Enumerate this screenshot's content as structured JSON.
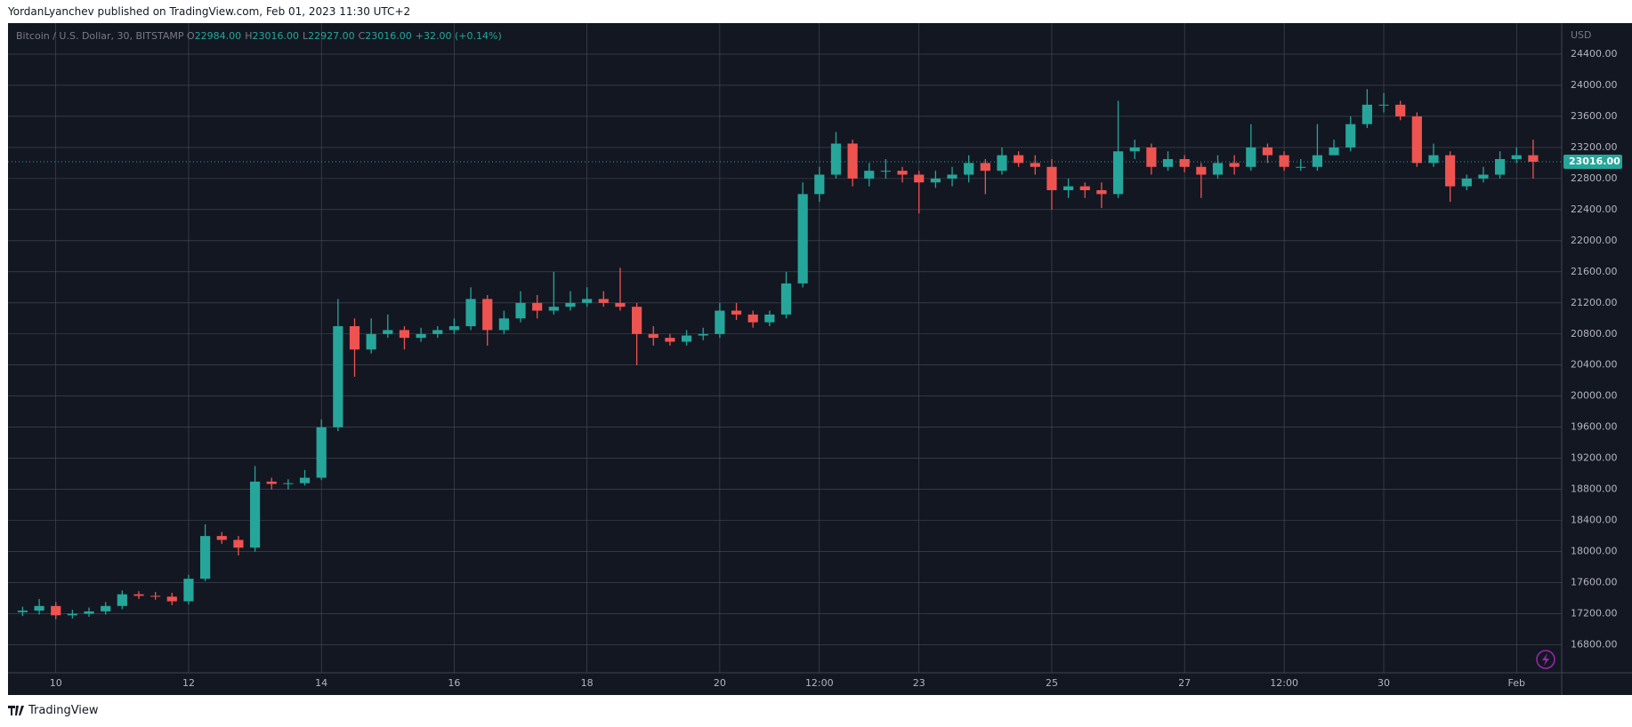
{
  "header": {
    "byline": "YordanLyanchev published on TradingView.com, Feb 01, 2023 11:30 UTC+2"
  },
  "footer": {
    "brand": "TradingView"
  },
  "chart_data": {
    "type": "candlestick",
    "symbol": "Bitcoin / U.S. Dollar, 30, BITSTAMP",
    "legend": [
      {
        "label": "O",
        "value": "22984.00"
      },
      {
        "label": "H",
        "value": "23016.00"
      },
      {
        "label": "L",
        "value": "22927.00"
      },
      {
        "label": "C",
        "value": "23016.00"
      }
    ],
    "change": "+32.00 (+0.14%)",
    "currency": "USD",
    "last_price_label": "23016.00",
    "up_color": "#26a69a",
    "down_color": "#ef5350",
    "grid": true,
    "x": [
      9.5,
      9.75,
      10,
      10.25,
      10.5,
      10.75,
      11,
      11.25,
      11.5,
      11.75,
      12,
      12.25,
      12.5,
      12.75,
      13,
      13.25,
      13.5,
      13.75,
      14,
      14.25,
      14.5,
      14.75,
      15,
      15.25,
      15.5,
      15.75,
      16,
      16.25,
      16.5,
      16.75,
      17,
      17.25,
      17.5,
      17.75,
      18,
      18.25,
      18.5,
      18.75,
      19,
      19.25,
      19.5,
      19.75,
      20,
      20.25,
      20.5,
      20.75,
      21,
      21.25,
      21.5,
      21.75,
      22,
      22.25,
      22.5,
      22.75,
      23,
      23.25,
      23.5,
      23.75,
      24,
      24.25,
      24.5,
      24.75,
      25,
      25.25,
      25.5,
      25.75,
      26,
      26.25,
      26.5,
      26.75,
      27,
      27.25,
      27.5,
      27.75,
      28,
      28.25,
      28.5,
      28.75,
      29,
      29.25,
      29.5,
      29.75,
      30,
      30.25,
      30.5,
      30.75,
      31,
      31.25,
      31.5,
      31.75,
      32,
      32.25
    ],
    "open": [
      17220,
      17240,
      17300,
      17180,
      17200,
      17230,
      17300,
      17450,
      17430,
      17420,
      17360,
      17650,
      18200,
      18150,
      18050,
      18900,
      18870,
      18880,
      18950,
      19600,
      20900,
      20600,
      20800,
      20850,
      20750,
      20800,
      20850,
      20900,
      21250,
      20850,
      21000,
      21200,
      21100,
      21150,
      21200,
      21250,
      21200,
      21150,
      20800,
      20750,
      20700,
      20780,
      20800,
      21100,
      21050,
      20950,
      21050,
      21450,
      22600,
      22850,
      23250,
      22800,
      22900,
      22900,
      22850,
      22750,
      22800,
      22850,
      23000,
      22900,
      23100,
      23000,
      22950,
      22650,
      22700,
      22650,
      22600,
      23150,
      23200,
      22950,
      23050,
      22950,
      22850,
      23000,
      22950,
      23200,
      23100,
      22950,
      22950,
      23100,
      23200,
      23500,
      23750,
      23750,
      23600,
      23000,
      23100,
      22700,
      22800,
      22850,
      23050,
      23100
    ],
    "high": [
      17290,
      17390,
      17350,
      17250,
      17280,
      17350,
      17500,
      17490,
      17480,
      17470,
      17700,
      18350,
      18250,
      18200,
      19100,
      18950,
      18930,
      19050,
      19700,
      21250,
      21000,
      21000,
      21050,
      20900,
      20880,
      20900,
      21000,
      21400,
      21300,
      21100,
      21350,
      21300,
      21600,
      21350,
      21400,
      21350,
      21650,
      21200,
      20900,
      20800,
      20850,
      20880,
      21200,
      21200,
      21100,
      21100,
      21600,
      22750,
      22950,
      23400,
      23300,
      23000,
      23050,
      22950,
      22900,
      22900,
      22950,
      23100,
      23050,
      23200,
      23150,
      23100,
      23050,
      22800,
      22750,
      22750,
      23800,
      23300,
      23250,
      23150,
      23100,
      23000,
      23100,
      23100,
      23500,
      23250,
      23150,
      23050,
      23500,
      23300,
      23600,
      23950,
      23900,
      23800,
      23650,
      23250,
      23150,
      22850,
      22950,
      23150,
      23200,
      23300
    ],
    "low": [
      17170,
      17190,
      17130,
      17140,
      17160,
      17190,
      17260,
      17390,
      17380,
      17310,
      17320,
      17620,
      18100,
      17950,
      18000,
      18800,
      18800,
      18850,
      18920,
      19550,
      20250,
      20550,
      20750,
      20600,
      20700,
      20750,
      20800,
      20850,
      20650,
      20800,
      20950,
      21000,
      21050,
      21100,
      21150,
      21150,
      21100,
      20400,
      20650,
      20650,
      20650,
      20720,
      20750,
      20980,
      20880,
      20900,
      21000,
      21400,
      22500,
      22800,
      22700,
      22700,
      22800,
      22750,
      22350,
      22680,
      22700,
      22750,
      22600,
      22850,
      22950,
      22850,
      22400,
      22550,
      22550,
      22420,
      22550,
      23050,
      22850,
      22900,
      22880,
      22550,
      22800,
      22850,
      22900,
      23000,
      22900,
      22900,
      22900,
      23150,
      23150,
      23450,
      23650,
      23550,
      22950,
      22950,
      22500,
      22650,
      22750,
      22800,
      23000,
      22800
    ],
    "close": [
      17240,
      17300,
      17180,
      17200,
      17230,
      17300,
      17450,
      17430,
      17420,
      17360,
      17650,
      18200,
      18150,
      18050,
      18900,
      18870,
      18880,
      18950,
      19600,
      20900,
      20600,
      20800,
      20850,
      20750,
      20800,
      20850,
      20900,
      21250,
      20850,
      21000,
      21200,
      21100,
      21150,
      21200,
      21250,
      21200,
      21150,
      20800,
      20750,
      20700,
      20780,
      20800,
      21100,
      21050,
      20950,
      21050,
      21450,
      22600,
      22850,
      23250,
      22800,
      22900,
      22900,
      22850,
      22750,
      22800,
      22850,
      23000,
      22900,
      23100,
      23000,
      22950,
      22650,
      22700,
      22650,
      22600,
      23150,
      23200,
      22950,
      23050,
      22950,
      22850,
      23000,
      22950,
      23200,
      23100,
      22950,
      22950,
      23100,
      23200,
      23500,
      23750,
      23750,
      23600,
      23000,
      23100,
      22700,
      22800,
      22850,
      23050,
      23100,
      23016
    ],
    "xlim": [
      9.28,
      32.68
    ],
    "xticks": [
      10,
      12,
      14,
      16,
      18,
      20,
      {
        "value": 21.5,
        "label": "12:00"
      },
      23,
      25,
      27,
      {
        "value": 28.5,
        "label": "12:00"
      },
      30,
      {
        "value": 32,
        "label": "Feb"
      }
    ],
    "ylim": [
      16440,
      24800
    ],
    "yticks": [
      {
        "value": 16800,
        "label": "16800.00"
      },
      {
        "value": 17200,
        "label": "17200.00"
      },
      {
        "value": 17600,
        "label": "17600.00"
      },
      {
        "value": 18000,
        "label": "18000.00"
      },
      {
        "value": 18400,
        "label": "18400.00"
      },
      {
        "value": 18800,
        "label": "18800.00"
      },
      {
        "value": 19200,
        "label": "19200.00"
      },
      {
        "value": 19600,
        "label": "19600.00"
      },
      {
        "value": 20000,
        "label": "20000.00"
      },
      {
        "value": 20400,
        "label": "20400.00"
      },
      {
        "value": 20800,
        "label": "20800.00"
      },
      {
        "value": 21200,
        "label": "21200.00"
      },
      {
        "value": 21600,
        "label": "21600.00"
      },
      {
        "value": 22000,
        "label": "22000.00"
      },
      {
        "value": 22400,
        "label": "22400.00"
      },
      {
        "value": 22800,
        "label": "22800.00"
      },
      {
        "value": 23200,
        "label": "23200.00"
      },
      {
        "value": 23600,
        "label": "23600.00"
      },
      {
        "value": 24000,
        "label": "24000.00"
      },
      {
        "value": 24400,
        "label": "24400.00"
      }
    ]
  }
}
